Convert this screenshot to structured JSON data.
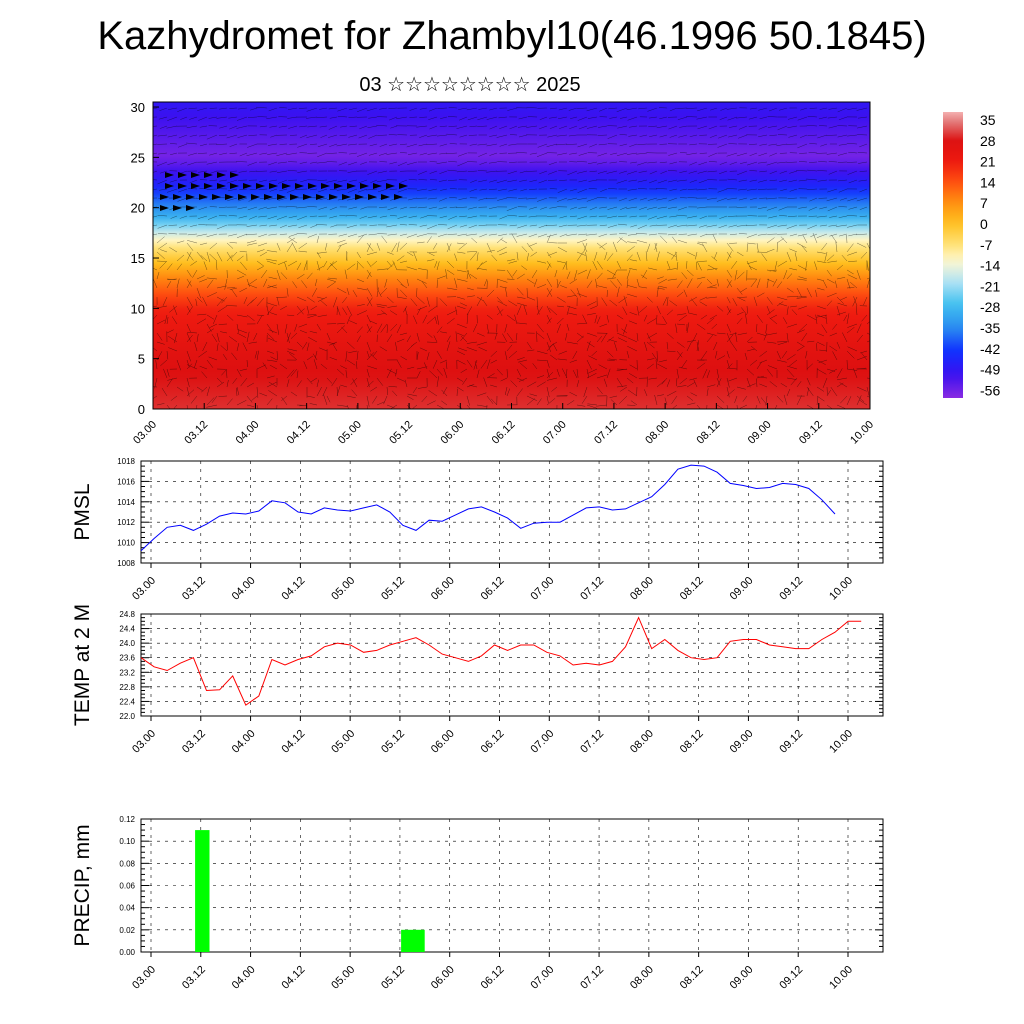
{
  "header": {
    "title": "Kazhydromet for Zhambyl10(46.1996 50.1845)",
    "subtitle": "03 ☆☆☆☆☆☆☆☆ 2025"
  },
  "time_ticks": [
    "03.00",
    "03.12",
    "04.00",
    "04.12",
    "05.00",
    "05.12",
    "06.00",
    "06.12",
    "07.00",
    "07.12",
    "08.00",
    "08.12",
    "09.00",
    "09.12",
    "10.00"
  ],
  "chart_data": [
    {
      "type": "heatmap",
      "title": "",
      "x_tick_labels": [
        "03.00",
        "03.12",
        "04.00",
        "04.12",
        "05.00",
        "05.12",
        "06.00",
        "06.12",
        "07.00",
        "07.12",
        "08.00",
        "08.12",
        "09.00",
        "09.12",
        "10.00"
      ],
      "y_ticks": [
        0,
        5,
        10,
        15,
        20,
        25,
        30
      ],
      "ylim": [
        0,
        30.5
      ],
      "colorbar_labels": [
        "35",
        "28",
        "21",
        "14",
        "7",
        "0",
        "-7",
        "-14",
        "-21",
        "-28",
        "-35",
        "-42",
        "-49",
        "-56"
      ],
      "colorbar_range": [
        -60,
        38
      ],
      "description_overlay": "wind vectors (streamlines) over temperature field by level",
      "temperature_profile": [
        {
          "level": 0,
          "value": 30
        },
        {
          "level": 5,
          "value": 27
        },
        {
          "level": 10,
          "value": 20
        },
        {
          "level": 13,
          "value": 8
        },
        {
          "level": 16.5,
          "value": -10
        },
        {
          "level": 19,
          "value": -30
        },
        {
          "level": 22,
          "value": -46
        },
        {
          "level": 25,
          "value": -58
        },
        {
          "level": 30.5,
          "value": -50
        }
      ]
    },
    {
      "type": "line",
      "ylabel": "PMSL",
      "ylim": [
        1008,
        1018
      ],
      "y_ticks": [
        "1008",
        "1010",
        "1012",
        "1014",
        "1016",
        "1018"
      ],
      "x_tick_labels": [
        "03.00",
        "03.12",
        "04.00",
        "04.12",
        "05.00",
        "05.12",
        "06.00",
        "06.12",
        "07.00",
        "07.12",
        "08.00",
        "08.12",
        "09.00",
        "09.12",
        "10.00"
      ],
      "series": [
        {
          "color": "#0000ff",
          "x": [
            0,
            3,
            6,
            9,
            12,
            15,
            18,
            21,
            24,
            27,
            30,
            33,
            36,
            39,
            42,
            45,
            48,
            51,
            54,
            57,
            60,
            63,
            66,
            69,
            72,
            75,
            78,
            81,
            84,
            87,
            90,
            93,
            96,
            99,
            102,
            105,
            108,
            111,
            114,
            117,
            120,
            123,
            126,
            129,
            132,
            135,
            138,
            141,
            144,
            147,
            150,
            153,
            156,
            159
          ],
          "values": [
            1009.2,
            1010.4,
            1011.5,
            1011.7,
            1011.2,
            1011.8,
            1012.6,
            1012.9,
            1012.8,
            1013.1,
            1014.1,
            1013.9,
            1013.0,
            1012.8,
            1013.4,
            1013.2,
            1013.1,
            1013.4,
            1013.7,
            1013.0,
            1011.7,
            1011.2,
            1012.2,
            1012.1,
            1012.7,
            1013.3,
            1013.5,
            1013.0,
            1012.4,
            1011.4,
            1011.9,
            1012.0,
            1012.0,
            1012.7,
            1013.4,
            1013.5,
            1013.2,
            1013.3,
            1013.9,
            1014.5,
            1015.7,
            1017.2,
            1017.6,
            1017.5,
            1016.9,
            1015.8,
            1015.6,
            1015.3,
            1015.4,
            1015.8,
            1015.7,
            1015.3,
            1014.2,
            1012.8
          ]
        }
      ]
    },
    {
      "type": "line",
      "ylabel": "TEMP at 2 M",
      "ylim": [
        22.0,
        24.8
      ],
      "y_ticks": [
        "22.0",
        "22.4",
        "22.8",
        "23.2",
        "23.6",
        "24.0",
        "24.4",
        "24.8"
      ],
      "x_tick_labels": [
        "03.00",
        "03.12",
        "04.00",
        "04.12",
        "05.00",
        "05.12",
        "06.00",
        "06.12",
        "07.00",
        "07.12",
        "08.00",
        "08.12",
        "09.00",
        "09.12",
        "10.00"
      ],
      "series": [
        {
          "color": "#ff0000",
          "x": [
            0,
            3,
            6,
            9,
            12,
            15,
            18,
            21,
            24,
            27,
            30,
            33,
            36,
            39,
            42,
            45,
            48,
            51,
            54,
            57,
            60,
            63,
            66,
            69,
            72,
            75,
            78,
            81,
            84,
            87,
            90,
            93,
            96,
            99,
            102,
            105,
            108,
            111,
            114,
            117,
            120,
            123,
            126,
            129,
            132,
            135,
            138,
            141,
            144,
            147,
            150,
            153,
            156,
            159,
            162,
            165
          ],
          "values": [
            23.6,
            23.35,
            23.25,
            23.45,
            23.6,
            22.7,
            22.72,
            23.1,
            22.3,
            22.55,
            23.55,
            23.4,
            23.55,
            23.65,
            23.9,
            24.0,
            23.95,
            23.75,
            23.8,
            23.95,
            24.05,
            24.15,
            23.95,
            23.7,
            23.6,
            23.5,
            23.65,
            23.95,
            23.8,
            23.95,
            23.95,
            23.75,
            23.65,
            23.4,
            23.45,
            23.4,
            23.5,
            23.9,
            24.7,
            23.85,
            24.1,
            23.8,
            23.6,
            23.55,
            23.6,
            24.05,
            24.1,
            24.1,
            23.95,
            23.9,
            23.85,
            23.85,
            24.1,
            24.3,
            24.6,
            24.6
          ]
        }
      ]
    },
    {
      "type": "bar",
      "ylabel": "PRECIP, mm",
      "ylim": [
        0,
        0.12
      ],
      "y_ticks": [
        "0.00",
        "0.02",
        "0.04",
        "0.06",
        "0.08",
        "0.10",
        "0.12"
      ],
      "x_tick_labels": [
        "03.00",
        "03.12",
        "04.00",
        "04.12",
        "05.00",
        "05.12",
        "06.00",
        "06.12",
        "07.00",
        "07.12",
        "08.00",
        "08.12",
        "09.00",
        "09.12",
        "10.00"
      ],
      "bar_color": "#00ff00",
      "bars": [
        {
          "x_start": 12.4,
          "x_end": 15.7,
          "value": 0.11
        },
        {
          "x_start": 59.6,
          "x_end": 65.0,
          "value": 0.02
        }
      ]
    }
  ]
}
